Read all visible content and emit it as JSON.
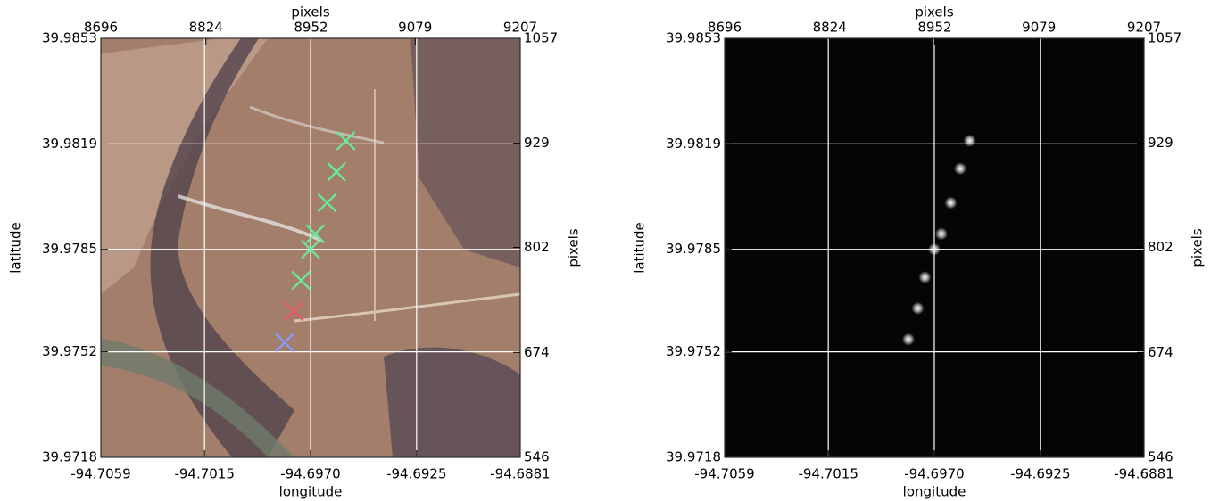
{
  "chart_data": [
    {
      "type": "scatter",
      "marker": "x",
      "background": "image",
      "grid": true,
      "grid_color": "#ffffff",
      "xlabel": "longitude",
      "ylabel": "latitude",
      "x2label": "pixels",
      "y2label": "pixels",
      "xlim": [
        -94.7059,
        -94.6881
      ],
      "xticks": [
        -94.7059,
        -94.7015,
        {
          "value": -94.697,
          "label": "-94.6970"
        },
        -94.6925,
        -94.6881
      ],
      "ylim": [
        39.9718,
        39.9853
      ],
      "yticks": [
        39.9718,
        39.9752,
        39.9785,
        39.9819,
        39.9853
      ],
      "x2lim": [
        8696,
        9207
      ],
      "x2ticks": [
        8696,
        8824,
        8952,
        9079,
        9207
      ],
      "y2lim": [
        546,
        1057
      ],
      "y2ticks": [
        546,
        674,
        802,
        929,
        1057
      ],
      "series": [
        {
          "x": [
            -94.6955,
            -94.6959,
            -94.6963,
            -94.6968,
            -94.697,
            -94.6974,
            -94.6977,
            -94.6981
          ],
          "values": [
            39.982,
            39.981,
            39.98,
            39.979,
            39.9785,
            39.9775,
            39.9765,
            39.9755
          ],
          "colors": [
            "#66ee99",
            "#66ee99",
            "#66ee99",
            "#66ee99",
            "#66ee99",
            "#66ee99",
            "#ee5566",
            "#8899ff"
          ]
        }
      ]
    },
    {
      "type": "scatter",
      "marker": "spot",
      "background": "dark",
      "grid": true,
      "grid_color": "#ffffff",
      "xlabel": "longitude",
      "ylabel": "latitude",
      "x2label": "pixels",
      "y2label": "pixels",
      "xlim": [
        -94.7059,
        -94.6881
      ],
      "xticks": [
        -94.7059,
        -94.7015,
        {
          "value": -94.697,
          "label": "-94.6970"
        },
        -94.6925,
        -94.6881
      ],
      "ylim": [
        39.9718,
        39.9853
      ],
      "yticks": [
        39.9718,
        39.9752,
        39.9785,
        39.9819,
        39.9853
      ],
      "x2lim": [
        8696,
        9207
      ],
      "x2ticks": [
        8696,
        8824,
        8952,
        9079,
        9207
      ],
      "y2lim": [
        546,
        1057
      ],
      "y2ticks": [
        546,
        674,
        802,
        929,
        1057
      ],
      "series": [
        {
          "x": [
            -94.6955,
            -94.6959,
            -94.6963,
            -94.6967,
            -94.697,
            -94.6974,
            -94.6977,
            -94.6981
          ],
          "values": [
            39.982,
            39.9811,
            39.98,
            39.979,
            39.9785,
            39.9776,
            39.9766,
            39.9756
          ],
          "colors": [
            "#ffffff",
            "#dddddd",
            "#eeeeee",
            "#eeeeee",
            "#ffffff",
            "#eeeeee",
            "#dddddd",
            "#ffffff"
          ]
        }
      ]
    }
  ]
}
